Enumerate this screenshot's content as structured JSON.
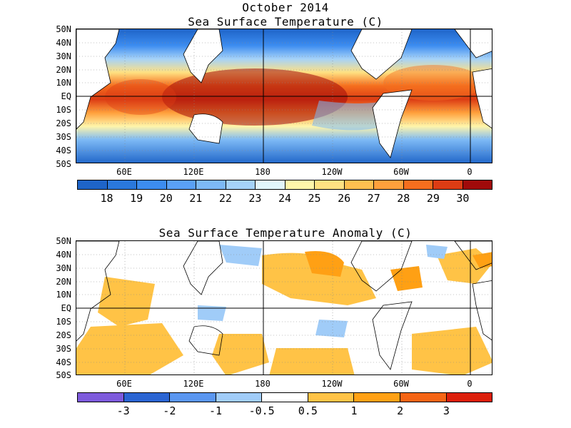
{
  "header": {
    "title": "October 2014"
  },
  "top_map": {
    "title": "Sea Surface Temperature (C)",
    "lat_labels": [
      "50N",
      "40N",
      "30N",
      "20N",
      "10N",
      "EQ",
      "10S",
      "20S",
      "30S",
      "40S",
      "50S"
    ],
    "lon_labels": [
      "60E",
      "120E",
      "180",
      "120W",
      "60W",
      "0"
    ],
    "colorbar": {
      "colors": [
        "#1e64c8",
        "#2a78dc",
        "#3c8cf0",
        "#5aa0f5",
        "#7db9f5",
        "#a5d2f8",
        "#e1f5fa",
        "#fff5aa",
        "#ffe182",
        "#ffc050",
        "#ffa03c",
        "#f56e1e",
        "#dc3c14",
        "#a00a0a"
      ],
      "labels": [
        "18",
        "19",
        "20",
        "21",
        "22",
        "23",
        "24",
        "25",
        "26",
        "27",
        "28",
        "29",
        "30"
      ]
    }
  },
  "bottom_map": {
    "title": "Sea Surface Temperature Anomaly (C)",
    "lat_labels": [
      "50N",
      "40N",
      "30N",
      "20N",
      "10N",
      "EQ",
      "10S",
      "20S",
      "30S",
      "40S",
      "50S"
    ],
    "lon_labels": [
      "60E",
      "120E",
      "180",
      "120W",
      "60W",
      "0"
    ],
    "colorbar": {
      "colors": [
        "#7d5adc",
        "#2a64d2",
        "#5a96f0",
        "#a0ccf8",
        "#ffffff",
        "#ffc346",
        "#ffa014",
        "#f56414",
        "#dc1e0a"
      ],
      "labels": [
        "-3",
        "-2",
        "-1",
        "-0.5",
        "0.5",
        "1",
        "2",
        "3"
      ]
    }
  }
}
